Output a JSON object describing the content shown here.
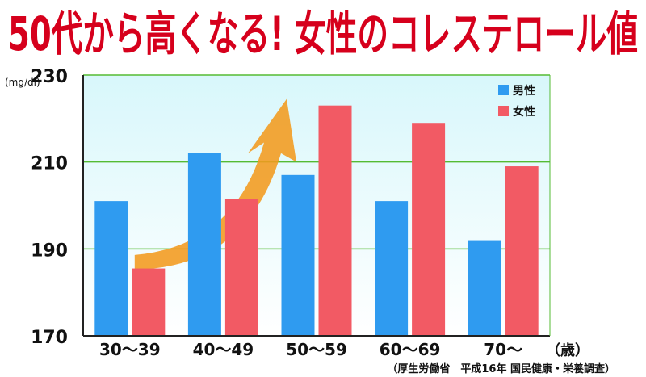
{
  "title": "50代から高くなる! 女性のコレステロール値",
  "source": "（厚生労働省　平成16年 国民健康・栄養調査）",
  "chart_data": {
    "type": "bar",
    "title": "50代から高くなる! 女性のコレステロール値",
    "ylabel": "(mg/dl)",
    "xlabel": "（歳）",
    "ylim": [
      170,
      230
    ],
    "yticks": [
      170,
      190,
      210,
      230
    ],
    "grid": true,
    "legend_position": "top-right",
    "categories": [
      "30〜39",
      "40〜49",
      "50〜59",
      "60〜69",
      "70〜"
    ],
    "series": [
      {
        "name": "男性",
        "color": "#2f9bf0",
        "values": [
          201,
          212,
          207,
          201,
          192
        ]
      },
      {
        "name": "女性",
        "color": "#f25a64",
        "values": [
          185.5,
          201.5,
          223,
          219,
          209
        ]
      }
    ],
    "arrow_color": "#f39a1e"
  }
}
